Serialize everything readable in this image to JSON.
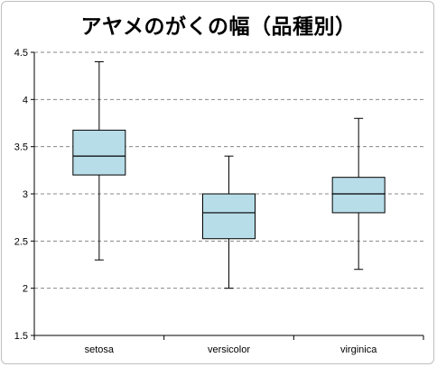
{
  "chart_data": {
    "type": "boxplot",
    "title": "アヤメのがくの幅（品種別）",
    "xlabel": "",
    "ylabel": "",
    "ylim": [
      1.5,
      4.5
    ],
    "yticks": [
      "1.5",
      "2",
      "2.5",
      "3",
      "3.5",
      "4",
      "4.5"
    ],
    "grid": "horizontal-dashed",
    "categories": [
      "setosa",
      "versicolor",
      "virginica"
    ],
    "boxes": [
      {
        "category": "setosa",
        "min": 2.3,
        "q1": 3.2,
        "median": 3.4,
        "q3": 3.675,
        "max": 4.4
      },
      {
        "category": "versicolor",
        "min": 2.0,
        "q1": 2.525,
        "median": 2.8,
        "q3": 3.0,
        "max": 3.4
      },
      {
        "category": "virginica",
        "min": 2.2,
        "q1": 2.8,
        "median": 3.0,
        "q3": 3.175,
        "max": 3.8
      }
    ],
    "colors": {
      "box_fill": "#b7dde8",
      "box_stroke": "#000000",
      "grid": "#888888"
    }
  }
}
